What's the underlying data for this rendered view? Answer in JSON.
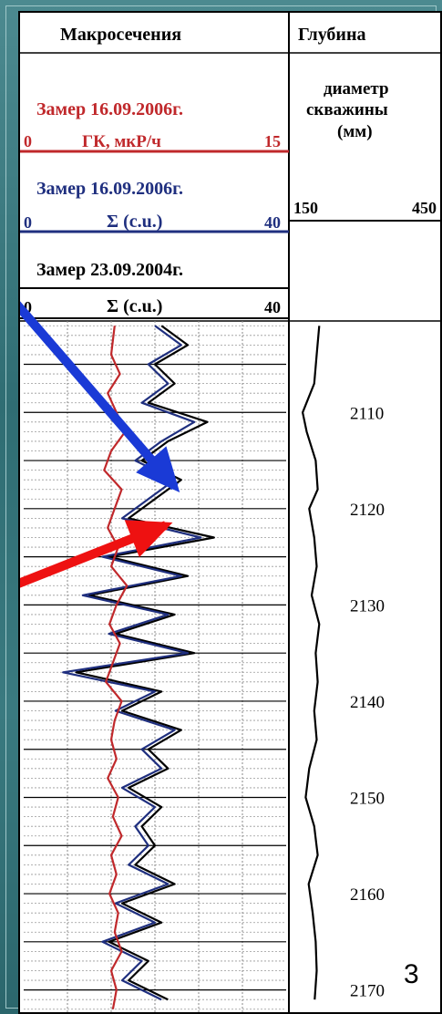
{
  "header": {
    "col1_title": "Макросечения",
    "col2_title": "Глубина",
    "col2_sub_line1": "диаметр",
    "col2_sub_line2": "скважины",
    "col2_sub_line3": "(мм)",
    "col2_scale_min": "150",
    "col2_scale_max": "450"
  },
  "tracks": [
    {
      "date_label": "Замер 16.09.2006г.",
      "scale_min": "0",
      "curve_label": "ГК, мкР/ч",
      "scale_max": "15",
      "color": "#c0282b"
    },
    {
      "date_label": "Замер 16.09.2006г.",
      "scale_min": "0",
      "curve_label": "Σ (с.u.)",
      "scale_max": "40",
      "color": "#1f2f7f"
    },
    {
      "date_label": "Замер 23.09.2004г.",
      "scale_min": "0",
      "curve_label": "Σ (с.u.)",
      "scale_max": "40",
      "color": "#000000"
    }
  ],
  "arrows": {
    "blue_color": "#1a3ad6",
    "red_color": "#ee1111"
  },
  "slide_number": "3",
  "chart_data": {
    "type": "line",
    "depth_ticks": [
      2110,
      2120,
      2130,
      2140,
      2150,
      2160,
      2170
    ],
    "depth_range": [
      2100.5,
      2172.5
    ],
    "series": [
      {
        "name": "ГК, мкР/ч",
        "color": "#c0282b",
        "xlim": [
          0,
          15
        ],
        "depth": [
          2101,
          2104,
          2106,
          2108,
          2110,
          2112,
          2114,
          2116,
          2118,
          2120,
          2122,
          2124,
          2126,
          2128,
          2130,
          2132,
          2134,
          2136,
          2138,
          2140,
          2142,
          2144,
          2146,
          2148,
          2150,
          2152,
          2154,
          2156,
          2158,
          2160,
          2162,
          2164,
          2166,
          2168,
          2170,
          2172
        ],
        "values": [
          5.2,
          5.0,
          5.5,
          4.8,
          5.3,
          5.8,
          5.0,
          4.6,
          5.6,
          5.2,
          4.8,
          5.4,
          5.0,
          5.9,
          5.3,
          4.9,
          5.5,
          5.1,
          4.7,
          5.6,
          5.2,
          5.0,
          5.3,
          4.8,
          5.4,
          5.1,
          5.6,
          5.0,
          5.3,
          4.9,
          5.4,
          5.2,
          5.6,
          5.0,
          5.3,
          5.1
        ]
      },
      {
        "name": "Σ (с.u.) 16.09.2006",
        "color": "#1f2f7f",
        "xlim": [
          0,
          40
        ],
        "depth": [
          2101,
          2103,
          2105,
          2107,
          2109,
          2111,
          2113,
          2115,
          2117,
          2119,
          2121,
          2123,
          2125,
          2127,
          2129,
          2131,
          2133,
          2135,
          2137,
          2139,
          2141,
          2143,
          2145,
          2147,
          2149,
          2151,
          2153,
          2155,
          2157,
          2159,
          2161,
          2163,
          2165,
          2167,
          2169,
          2171
        ],
        "values": [
          20,
          24,
          19,
          22,
          18,
          26,
          21,
          17,
          23,
          19,
          15,
          27,
          12,
          24,
          9,
          22,
          13,
          25,
          6,
          20,
          14,
          23,
          18,
          21,
          15,
          20,
          17,
          19,
          16,
          22,
          14,
          20,
          12,
          18,
          15,
          21
        ]
      },
      {
        "name": "Σ (с.u.) 23.09.2004",
        "color": "#000000",
        "xlim": [
          0,
          40
        ],
        "depth": [
          2101,
          2103,
          2105,
          2107,
          2109,
          2111,
          2113,
          2115,
          2117,
          2119,
          2121,
          2123,
          2125,
          2127,
          2129,
          2131,
          2133,
          2135,
          2137,
          2139,
          2141,
          2143,
          2145,
          2147,
          2149,
          2151,
          2153,
          2155,
          2157,
          2159,
          2161,
          2163,
          2165,
          2167,
          2169,
          2171
        ],
        "values": [
          21,
          25,
          20,
          23,
          19,
          28,
          22,
          18,
          24,
          20,
          16,
          29,
          13,
          25,
          10,
          23,
          14,
          26,
          8,
          21,
          15,
          24,
          19,
          22,
          16,
          21,
          18,
          20,
          17,
          23,
          15,
          21,
          13,
          19,
          16,
          22
        ]
      },
      {
        "name": "диаметр скважины (мм)",
        "color": "#000000",
        "xlim": [
          150,
          450
        ],
        "depth": [
          2101,
          2104,
          2107,
          2110,
          2112,
          2115,
          2118,
          2120,
          2123,
          2126,
          2129,
          2132,
          2135,
          2138,
          2141,
          2144,
          2147,
          2150,
          2153,
          2156,
          2159,
          2162,
          2165,
          2168,
          2171
        ],
        "values": [
          205,
          200,
          195,
          172,
          180,
          198,
          202,
          185,
          195,
          200,
          190,
          205,
          198,
          202,
          195,
          200,
          185,
          178,
          195,
          202,
          184,
          192,
          198,
          200,
          196
        ]
      }
    ]
  }
}
